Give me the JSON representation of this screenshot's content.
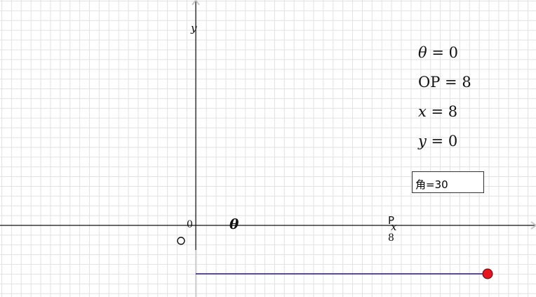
{
  "axes": {
    "x_label": "x",
    "y_label": "y",
    "origin_label": "0",
    "x_tick_label": "8"
  },
  "points": {
    "origin": "O",
    "p": "P"
  },
  "angle_symbol": "θ",
  "readouts": {
    "theta": {
      "name": "θ",
      "value": "0"
    },
    "op": {
      "name": "OP",
      "value": "8"
    },
    "x": {
      "name": "x",
      "value": "8"
    },
    "y": {
      "name": "y",
      "value": "0"
    }
  },
  "angle_input": {
    "value": "角=30"
  },
  "colors": {
    "segment": "#1e1496",
    "slider_point": "#e8141e"
  }
}
